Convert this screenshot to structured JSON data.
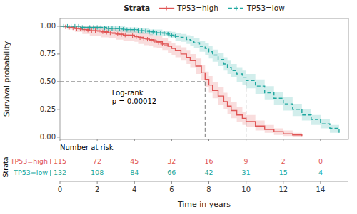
{
  "chart_data": {
    "type": "step",
    "legend": "top",
    "legend_title": "Strata",
    "ylabel": "Survival probability",
    "xlabel": "Time in years",
    "xlim": [
      0,
      15.5
    ],
    "ylim": [
      -0.02,
      1.07
    ],
    "xticks": [
      0,
      2,
      4,
      6,
      8,
      10,
      12,
      14
    ],
    "yticks": [
      {
        "value": 0.0,
        "label": "0.00"
      },
      {
        "value": 0.25,
        "label": "0.25"
      },
      {
        "value": 0.5,
        "label": "0.50"
      },
      {
        "value": 0.75,
        "label": "0.75"
      },
      {
        "value": 1.0,
        "label": "1.00"
      }
    ],
    "grid": false,
    "annotation": "Log-rank\np = 0.00012",
    "median": {
      "x": [
        7.8,
        10.0
      ],
      "y": 0.5,
      "from_x": 0,
      "from_y": 0,
      "color": "#555555",
      "line_style": "dashed"
    },
    "risk_title": "Number at risk",
    "risk_label": "Strata",
    "risk_times": [
      0,
      2,
      4,
      6,
      8,
      10,
      12,
      14
    ],
    "series": [
      {
        "name": "TP53=high",
        "color": "#E05555",
        "line_style": "solid",
        "marker": "plus",
        "x": [
          0.0,
          0.2,
          0.4,
          0.6,
          0.8,
          1.0,
          1.2,
          1.4,
          1.6,
          1.8,
          2.0,
          2.2,
          2.4,
          2.6,
          2.8,
          3.0,
          3.2,
          3.4,
          3.6,
          3.8,
          4.0,
          4.2,
          4.5,
          4.8,
          5.0,
          5.2,
          5.5,
          5.8,
          6.0,
          6.2,
          6.5,
          6.8,
          7.0,
          7.3,
          7.6,
          7.8,
          8.0,
          8.2,
          8.5,
          8.8,
          9.0,
          9.2,
          9.5,
          9.8,
          10.0,
          10.5,
          11.0,
          11.5,
          12.0,
          12.5,
          13.0
        ],
        "values": [
          1.0,
          1.0,
          0.99,
          0.99,
          0.98,
          0.98,
          0.97,
          0.97,
          0.96,
          0.96,
          0.96,
          0.95,
          0.95,
          0.94,
          0.94,
          0.93,
          0.93,
          0.92,
          0.92,
          0.92,
          0.91,
          0.9,
          0.89,
          0.88,
          0.87,
          0.86,
          0.84,
          0.82,
          0.8,
          0.78,
          0.75,
          0.72,
          0.69,
          0.64,
          0.58,
          0.52,
          0.47,
          0.42,
          0.37,
          0.32,
          0.28,
          0.24,
          0.2,
          0.17,
          0.14,
          0.1,
          0.07,
          0.05,
          0.03,
          0.02,
          0.01
        ],
        "upper": [
          1.0,
          1.0,
          1.0,
          1.0,
          1.0,
          1.0,
          1.0,
          1.0,
          1.0,
          1.0,
          1.0,
          0.99,
          0.99,
          0.98,
          0.98,
          0.97,
          0.97,
          0.97,
          0.97,
          0.97,
          0.96,
          0.95,
          0.94,
          0.93,
          0.92,
          0.91,
          0.89,
          0.87,
          0.85,
          0.83,
          0.81,
          0.78,
          0.75,
          0.71,
          0.65,
          0.59,
          0.55,
          0.5,
          0.45,
          0.4,
          0.36,
          0.32,
          0.27,
          0.23,
          0.2,
          0.15,
          0.11,
          0.08,
          0.06,
          0.04,
          0.02
        ],
        "lower": [
          1.0,
          1.0,
          0.97,
          0.97,
          0.95,
          0.95,
          0.93,
          0.93,
          0.91,
          0.91,
          0.91,
          0.9,
          0.9,
          0.89,
          0.89,
          0.88,
          0.88,
          0.87,
          0.87,
          0.87,
          0.86,
          0.84,
          0.83,
          0.82,
          0.81,
          0.8,
          0.78,
          0.76,
          0.74,
          0.72,
          0.69,
          0.66,
          0.63,
          0.57,
          0.51,
          0.45,
          0.4,
          0.35,
          0.29,
          0.25,
          0.21,
          0.17,
          0.14,
          0.11,
          0.09,
          0.06,
          0.04,
          0.02,
          0.01,
          0.0,
          0.0
        ],
        "censor_x": [
          0.3,
          0.5,
          0.7,
          0.9,
          1.1,
          1.3,
          1.5,
          1.7,
          1.9,
          2.1,
          2.3,
          2.5,
          2.7,
          2.9,
          3.1,
          3.3,
          3.5,
          3.7,
          3.9,
          4.1,
          4.3,
          4.5,
          4.7,
          4.9,
          5.1,
          5.3,
          5.5,
          5.7
        ],
        "censor_y": [
          0.995,
          0.99,
          0.985,
          0.98,
          0.975,
          0.97,
          0.965,
          0.96,
          0.96,
          0.955,
          0.95,
          0.945,
          0.94,
          0.935,
          0.93,
          0.925,
          0.92,
          0.92,
          0.915,
          0.905,
          0.8966666666666667,
          0.89,
          0.8833333333333333,
          0.875,
          0.865,
          0.8533333333333333,
          0.84,
          0.8266666666666667
        ],
        "at_risk": [
          115,
          72,
          45,
          32,
          16,
          9,
          2,
          0
        ]
      },
      {
        "name": "TP53=low",
        "color": "#20A8A0",
        "line_style": "dashed",
        "marker": "plus",
        "x": [
          0.0,
          0.2,
          0.5,
          0.8,
          1.0,
          1.2,
          1.5,
          1.8,
          2.0,
          2.2,
          2.5,
          2.8,
          3.0,
          3.2,
          3.5,
          3.8,
          4.0,
          4.2,
          4.5,
          4.8,
          5.0,
          5.2,
          5.5,
          5.8,
          6.0,
          6.2,
          6.5,
          6.8,
          7.0,
          7.2,
          7.5,
          7.8,
          8.0,
          8.2,
          8.5,
          8.8,
          9.0,
          9.2,
          9.5,
          9.8,
          10.0,
          10.5,
          11.0,
          11.5,
          12.0,
          12.5,
          13.0,
          13.5,
          14.0,
          14.5,
          15.0
        ],
        "values": [
          1.0,
          1.0,
          1.0,
          1.0,
          1.0,
          0.99,
          0.99,
          0.99,
          0.99,
          0.99,
          0.98,
          0.98,
          0.98,
          0.98,
          0.97,
          0.97,
          0.97,
          0.96,
          0.96,
          0.95,
          0.95,
          0.94,
          0.94,
          0.93,
          0.92,
          0.91,
          0.9,
          0.88,
          0.87,
          0.85,
          0.82,
          0.8,
          0.77,
          0.74,
          0.7,
          0.66,
          0.63,
          0.6,
          0.57,
          0.54,
          0.51,
          0.46,
          0.4,
          0.35,
          0.3,
          0.25,
          0.2,
          0.16,
          0.12,
          0.08,
          0.04
        ],
        "upper": [
          1.0,
          1.0,
          1.0,
          1.0,
          1.0,
          1.0,
          1.0,
          1.0,
          1.0,
          1.0,
          1.0,
          1.0,
          1.0,
          1.0,
          0.99,
          0.99,
          0.99,
          0.98,
          0.98,
          0.97,
          0.97,
          0.97,
          0.96,
          0.96,
          0.95,
          0.94,
          0.93,
          0.92,
          0.91,
          0.89,
          0.87,
          0.85,
          0.82,
          0.79,
          0.76,
          0.72,
          0.69,
          0.66,
          0.63,
          0.6,
          0.57,
          0.52,
          0.46,
          0.41,
          0.36,
          0.3,
          0.25,
          0.2,
          0.16,
          0.11,
          0.07
        ],
        "lower": [
          1.0,
          1.0,
          1.0,
          1.0,
          1.0,
          0.97,
          0.97,
          0.97,
          0.97,
          0.97,
          0.96,
          0.96,
          0.95,
          0.95,
          0.94,
          0.94,
          0.94,
          0.93,
          0.93,
          0.92,
          0.92,
          0.91,
          0.91,
          0.9,
          0.89,
          0.87,
          0.86,
          0.84,
          0.82,
          0.8,
          0.77,
          0.74,
          0.71,
          0.68,
          0.64,
          0.6,
          0.57,
          0.54,
          0.5,
          0.47,
          0.44,
          0.39,
          0.34,
          0.29,
          0.24,
          0.19,
          0.15,
          0.11,
          0.08,
          0.04,
          0.01
        ],
        "censor_x": [
          0.2,
          0.4,
          0.6,
          0.8,
          1.0,
          1.2,
          1.4,
          1.6,
          1.8,
          2.0,
          2.2,
          2.4,
          2.6,
          2.8,
          3.0,
          3.2,
          3.4,
          3.6,
          3.8,
          4.0,
          4.2,
          4.4,
          4.6,
          4.8,
          5.0,
          5.2,
          5.4,
          5.6,
          5.8,
          6.0,
          6.2
        ],
        "censor_y": [
          1.0,
          1.0,
          1.0,
          1.0,
          1.0,
          0.99,
          0.99,
          0.99,
          0.99,
          0.99,
          0.99,
          0.9833333333333333,
          0.98,
          0.98,
          0.98,
          0.98,
          0.9733333333333334,
          0.97,
          0.97,
          0.97,
          0.96,
          0.96,
          0.9566666666666667,
          0.95,
          0.95,
          0.94,
          0.94,
          0.9366666666666666,
          0.93,
          0.92,
          0.91
        ],
        "at_risk": [
          132,
          108,
          84,
          66,
          42,
          31,
          15,
          4
        ]
      }
    ]
  }
}
